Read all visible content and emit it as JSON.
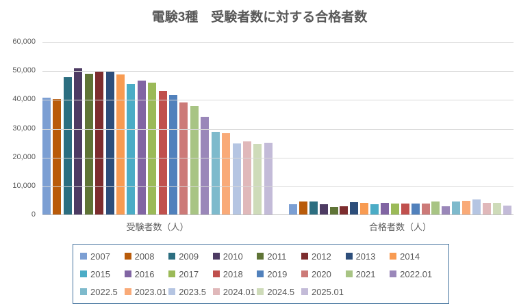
{
  "chart_data": {
    "type": "bar",
    "title": "電験3種　受験者数に対する合格者数",
    "categories": [
      "受験者数（人）",
      "合格者数（人）"
    ],
    "series": [
      {
        "name": "2007",
        "color": "#7C9FD3",
        "values": [
          40600,
          3600
        ]
      },
      {
        "name": "2008",
        "color": "#B95B0A",
        "values": [
          40100,
          4400
        ]
      },
      {
        "name": "2009",
        "color": "#2C6E80",
        "values": [
          47600,
          4600
        ]
      },
      {
        "name": "2010",
        "color": "#4D3B63",
        "values": [
          50800,
          3600
        ]
      },
      {
        "name": "2011",
        "color": "#5F7436",
        "values": [
          48900,
          2700
        ]
      },
      {
        "name": "2012",
        "color": "#7D2D2E",
        "values": [
          49500,
          2900
        ]
      },
      {
        "name": "2013",
        "color": "#2D4E7B",
        "values": [
          49600,
          4300
        ]
      },
      {
        "name": "2014",
        "color": "#F89B52",
        "values": [
          48700,
          4100
        ]
      },
      {
        "name": "2015",
        "color": "#4BACC6",
        "values": [
          45300,
          3500
        ]
      },
      {
        "name": "2016",
        "color": "#8165A3",
        "values": [
          46600,
          4000
        ]
      },
      {
        "name": "2017",
        "color": "#9BBA58",
        "values": [
          45700,
          3700
        ]
      },
      {
        "name": "2018",
        "color": "#C0504D",
        "values": [
          43000,
          3900
        ]
      },
      {
        "name": "2019",
        "color": "#5181BC",
        "values": [
          41500,
          3900
        ]
      },
      {
        "name": "2020",
        "color": "#CC7A78",
        "values": [
          39000,
          3800
        ]
      },
      {
        "name": "2021",
        "color": "#A8C484",
        "values": [
          37800,
          4400
        ]
      },
      {
        "name": "2022.01",
        "color": "#9A87B9",
        "values": [
          33800,
          2800
        ]
      },
      {
        "name": "2022.5",
        "color": "#7EBACC",
        "values": [
          28800,
          4500
        ]
      },
      {
        "name": "2023.01",
        "color": "#F9AA78",
        "values": [
          28200,
          4700
        ]
      },
      {
        "name": "2023.5",
        "color": "#B5C5E2",
        "values": [
          24600,
          5200
        ]
      },
      {
        "name": "2024.01",
        "color": "#E0B8BA",
        "values": [
          25400,
          4100
        ]
      },
      {
        "name": "2024.5",
        "color": "#CEDBB9",
        "values": [
          24500,
          4000
        ]
      },
      {
        "name": "2025.01",
        "color": "#C3BBD8",
        "values": [
          25000,
          3100
        ]
      }
    ],
    "ylim": [
      0,
      60000
    ],
    "y_tick_labels": [
      "0",
      "10,000",
      "20,000",
      "30,000",
      "40,000",
      "50,000",
      "60,000"
    ],
    "grid": true,
    "legend_position": "bottom",
    "colors": {
      "title_text": "#595959",
      "axis_text": "#595959",
      "gridline": "#D9D9D9",
      "axis_line": "#BFBFBF",
      "legend_border": "#41719C",
      "background": "#FFFFFF"
    }
  }
}
